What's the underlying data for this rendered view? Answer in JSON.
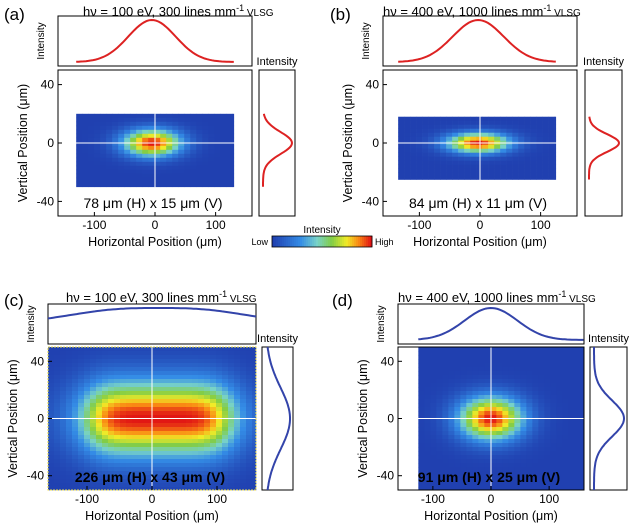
{
  "chart_data": [
    {
      "type": "heatmap",
      "panel_letter": "(a)",
      "title_energy": "hν = 100 eV, 300 lines mm",
      "title_exp": "-1",
      "title_suffix": "VLSG",
      "xlabel": "Horizontal Position (μm)",
      "ylabel": "Vertical Position (μm)",
      "top_profile_ylabel": "Intensity",
      "side_profile_label": "Intensity",
      "xticks": [
        "-100",
        "0",
        "100"
      ],
      "yticks": [
        "40",
        "0",
        "-40"
      ],
      "xlim": [
        -160,
        160
      ],
      "ylim": [
        -50,
        50
      ],
      "spot_size": "78 μm (H) x 15 μm (V)",
      "spot_fwhm_h_um": 78,
      "spot_fwhm_v_um": 15,
      "profile_color": "#dd2222",
      "image_extent_x": [
        -130,
        130
      ],
      "image_extent_y": [
        -30,
        20
      ],
      "center_x": -5,
      "center_y": 0
    },
    {
      "type": "heatmap",
      "panel_letter": "(b)",
      "title_energy": "hν = 400 eV, 1000 lines mm",
      "title_exp": "-1",
      "title_suffix": "VLSG",
      "xlabel": "Horizontal Position (μm)",
      "ylabel": "Vertical Position (μm)",
      "top_profile_ylabel": "Intensity",
      "side_profile_label": "Intensity",
      "xticks": [
        "-100",
        "0",
        "100"
      ],
      "yticks": [
        "40",
        "0",
        "-40"
      ],
      "xlim": [
        -160,
        160
      ],
      "ylim": [
        -50,
        50
      ],
      "spot_size": "84 μm (H) x 11 μm (V)",
      "spot_fwhm_h_um": 84,
      "spot_fwhm_v_um": 11,
      "profile_color": "#dd2222",
      "image_extent_x": [
        -135,
        125
      ],
      "image_extent_y": [
        -25,
        18
      ],
      "center_x": -3,
      "center_y": 0
    },
    {
      "type": "heatmap",
      "panel_letter": "(c)",
      "title_energy": "hν = 100 eV, 300 lines mm",
      "title_exp": "-1",
      "title_suffix": "VLSG",
      "xlabel": "Horizontal Position (μm)",
      "ylabel": "Vertical Position (μm)",
      "top_profile_ylabel": "Intensity",
      "side_profile_label": "Intensity",
      "xticks": [
        "-100",
        "0",
        "100"
      ],
      "yticks": [
        "40",
        "0",
        "-40"
      ],
      "xlim": [
        -160,
        160
      ],
      "ylim": [
        -50,
        50
      ],
      "spot_size": "226 μm (H) x 43 μm (V)",
      "spot_fwhm_h_um": 226,
      "spot_fwhm_v_um": 43,
      "profile_color": "#3344aa",
      "image_extent_x": [
        -160,
        160
      ],
      "image_extent_y": [
        -50,
        50
      ],
      "center_x": 10,
      "center_y": 0
    },
    {
      "type": "heatmap",
      "panel_letter": "(d)",
      "title_energy": "hν = 400 eV, 1000 lines mm",
      "title_exp": "-1",
      "title_suffix": "VLSG",
      "xlabel": "Horizontal Position (μm)",
      "ylabel": "Vertical Position (μm)",
      "top_profile_ylabel": "Intensity",
      "side_profile_label": "Intensity",
      "xticks": [
        "-100",
        "0",
        "100"
      ],
      "yticks": [
        "40",
        "0",
        "-40"
      ],
      "xlim": [
        -160,
        160
      ],
      "ylim": [
        -50,
        50
      ],
      "spot_size": "91 μm (H) x 25 μm (V)",
      "spot_fwhm_h_um": 91,
      "spot_fwhm_v_um": 25,
      "profile_color": "#3344aa",
      "image_extent_x": [
        -125,
        160
      ],
      "image_extent_y": [
        -50,
        50
      ],
      "center_x": 0,
      "center_y": 0
    }
  ],
  "colorbar": {
    "title": "Intensity",
    "low_label": "Low",
    "high_label": "High"
  }
}
